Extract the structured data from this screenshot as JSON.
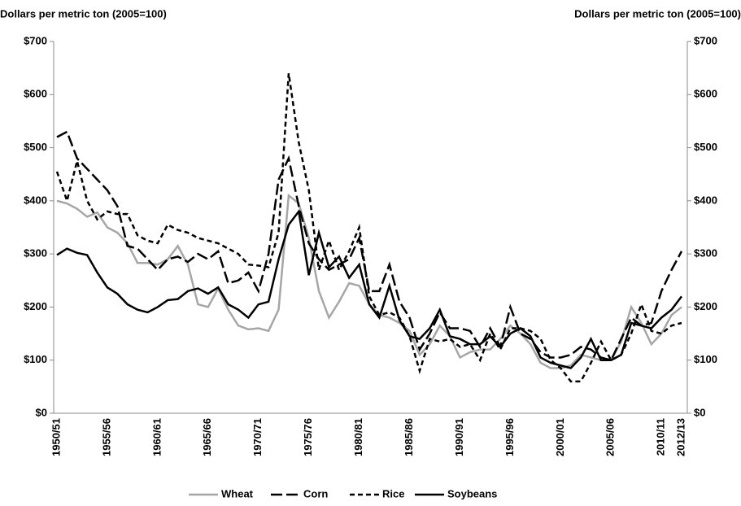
{
  "chart_data": {
    "type": "line",
    "y_label": "Dollars per metric ton (2005=100)",
    "y2_label": "Dollars per metric ton (2005=100)",
    "categories": [
      "1950/51",
      null,
      null,
      null,
      null,
      "1955/56",
      null,
      null,
      null,
      null,
      "1960/61",
      null,
      null,
      null,
      null,
      "1965/66",
      null,
      null,
      null,
      null,
      "1970/71",
      null,
      null,
      null,
      null,
      "1975/76",
      null,
      null,
      null,
      null,
      "1980/81",
      null,
      null,
      null,
      null,
      "1985/86",
      null,
      null,
      null,
      null,
      "1990/91",
      null,
      null,
      null,
      null,
      "1995/96",
      null,
      null,
      null,
      null,
      "2000/01",
      null,
      null,
      null,
      null,
      "2005/06",
      null,
      null,
      null,
      null,
      "2010/11",
      null,
      "2012/13"
    ],
    "series": [
      {
        "name": "Wheat",
        "color": "#a6a6a6",
        "dash": "solid",
        "values": [
          400,
          395,
          385,
          370,
          378,
          350,
          340,
          320,
          283,
          283,
          280,
          290,
          315,
          280,
          205,
          200,
          235,
          195,
          165,
          158,
          160,
          155,
          195,
          410,
          395,
          330,
          230,
          180,
          210,
          245,
          240,
          205,
          185,
          180,
          170,
          155,
          110,
          130,
          165,
          145,
          105,
          115,
          120,
          120,
          140,
          165,
          150,
          130,
          95,
          85,
          85,
          90,
          110,
          105,
          100,
          100,
          135,
          200,
          170,
          130,
          150,
          185,
          200
        ]
      },
      {
        "name": "Corn",
        "color": "#000000",
        "dash": "long",
        "values": [
          520,
          530,
          480,
          460,
          440,
          420,
          390,
          315,
          310,
          290,
          270,
          290,
          295,
          285,
          300,
          290,
          305,
          245,
          250,
          265,
          230,
          300,
          440,
          480,
          390,
          320,
          290,
          270,
          280,
          290,
          330,
          230,
          230,
          280,
          210,
          180,
          120,
          150,
          190,
          160,
          160,
          155,
          125,
          160,
          125,
          200,
          150,
          140,
          115,
          105,
          105,
          110,
          125,
          120,
          105,
          100,
          140,
          180,
          165,
          170,
          230,
          270,
          305
        ]
      },
      {
        "name": "Rice",
        "color": "#000000",
        "dash": "short",
        "values": [
          455,
          400,
          475,
          400,
          365,
          380,
          375,
          375,
          335,
          325,
          320,
          355,
          345,
          340,
          330,
          325,
          320,
          310,
          300,
          280,
          278,
          275,
          340,
          640,
          510,
          420,
          270,
          325,
          270,
          305,
          350,
          220,
          185,
          190,
          180,
          145,
          80,
          140,
          135,
          140,
          125,
          130,
          100,
          150,
          120,
          160,
          160,
          155,
          140,
          100,
          85,
          60,
          60,
          95,
          135,
          100,
          110,
          150,
          205,
          155,
          150,
          165,
          170
        ]
      },
      {
        "name": "Soybeans",
        "color": "#000000",
        "dash": "solid",
        "values": [
          298,
          310,
          302,
          298,
          265,
          237,
          225,
          205,
          195,
          190,
          200,
          213,
          215,
          230,
          235,
          225,
          237,
          205,
          195,
          180,
          205,
          210,
          290,
          355,
          380,
          260,
          340,
          275,
          295,
          255,
          280,
          205,
          180,
          240,
          175,
          145,
          140,
          160,
          195,
          145,
          140,
          130,
          130,
          145,
          125,
          150,
          160,
          145,
          105,
          95,
          90,
          85,
          105,
          140,
          100,
          100,
          110,
          170,
          165,
          160,
          180,
          195,
          220
        ]
      }
    ],
    "ylim": [
      0,
      700
    ],
    "yticks": [
      {
        "value": 0,
        "label": "$0"
      },
      {
        "value": 100,
        "label": "$100"
      },
      {
        "value": 200,
        "label": "$200"
      },
      {
        "value": 300,
        "label": "$300"
      },
      {
        "value": 400,
        "label": "$400"
      },
      {
        "value": 500,
        "label": "$500"
      },
      {
        "value": 600,
        "label": "$600"
      },
      {
        "value": 700,
        "label": "$700"
      }
    ],
    "y2lim": [
      0,
      700
    ],
    "y2ticks": [
      {
        "value": 0,
        "label": "$0"
      },
      {
        "value": 100,
        "label": "$100"
      },
      {
        "value": 200,
        "label": "$200"
      },
      {
        "value": 300,
        "label": "$300"
      },
      {
        "value": 400,
        "label": "$400"
      },
      {
        "value": 500,
        "label": "$500"
      },
      {
        "value": 600,
        "label": "$600"
      },
      {
        "value": 700,
        "label": "$700"
      }
    ],
    "grid": false,
    "legend": "bottom"
  }
}
